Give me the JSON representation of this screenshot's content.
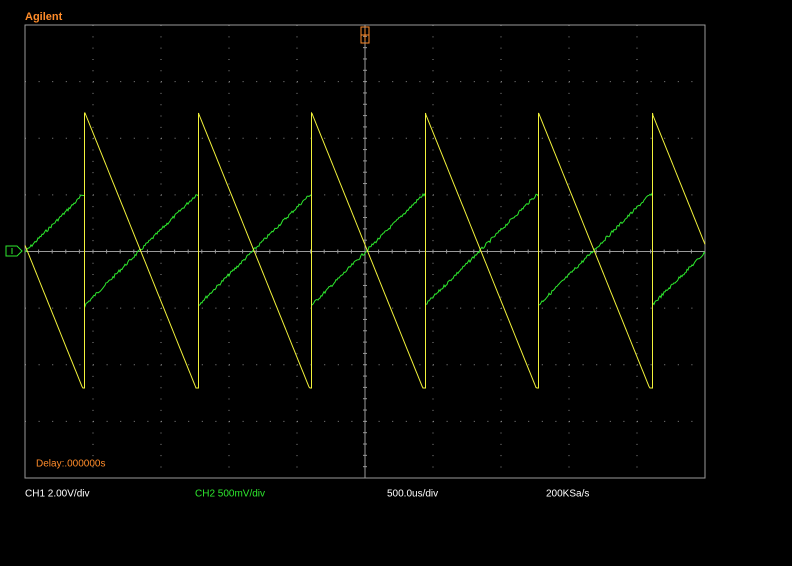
{
  "brand": "Agilent",
  "delay": "Delay:.000000s",
  "status": {
    "ch1": "CH1 2.00V/div",
    "ch2": "CH2 500mV/div",
    "timebase": "500.0us/div",
    "sample_rate": "200KSa/s"
  }
}
